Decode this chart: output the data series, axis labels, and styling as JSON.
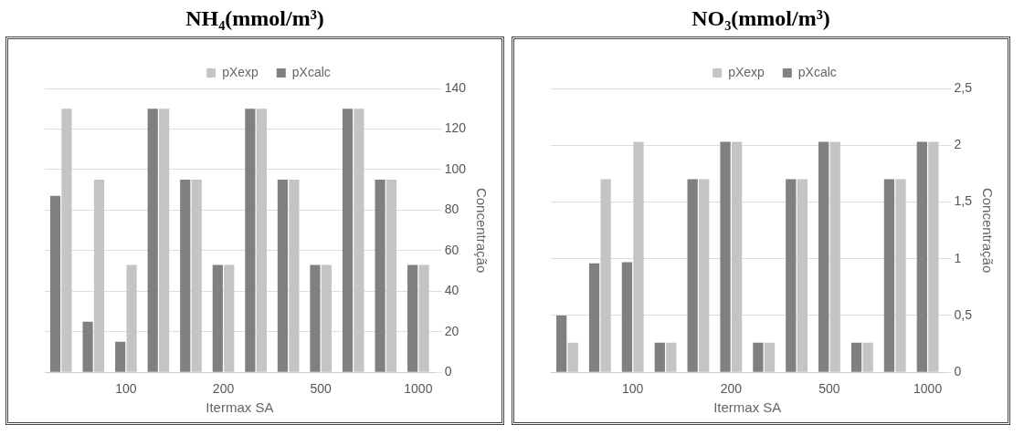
{
  "chart_data": [
    {
      "type": "bar",
      "title": "NH₄(mmol/m³)",
      "xlabel": "Itermax SA",
      "ylabel": "Concentração",
      "categories": [
        null,
        null,
        "100",
        null,
        null,
        "200",
        null,
        null,
        "500",
        null,
        null,
        "1000"
      ],
      "series": [
        {
          "name": "pXcalc",
          "color": "#808080",
          "values": [
            87,
            25,
            15,
            130,
            95,
            53,
            130,
            95,
            53,
            130,
            95,
            53
          ]
        },
        {
          "name": "pXexp",
          "color": "#c4c4c4",
          "values": [
            130,
            95,
            53,
            130,
            95,
            53,
            130,
            95,
            53,
            130,
            95,
            53
          ]
        }
      ],
      "ylim": [
        0,
        140
      ],
      "yticks": [
        0,
        20,
        40,
        60,
        80,
        100,
        120,
        140
      ],
      "grid": "y",
      "legend": "top"
    },
    {
      "type": "bar",
      "title": "NO₃(mmol/m³)",
      "xlabel": "Itermax SA",
      "ylabel": "Concentração",
      "categories": [
        null,
        null,
        "100",
        null,
        null,
        "200",
        null,
        null,
        "500",
        null,
        null,
        "1000"
      ],
      "series": [
        {
          "name": "pXcalc",
          "color": "#808080",
          "values": [
            0.5,
            0.96,
            0.97,
            0.26,
            1.7,
            2.03,
            0.26,
            1.7,
            2.03,
            0.26,
            1.7,
            2.03
          ]
        },
        {
          "name": "pXexp",
          "color": "#c4c4c4",
          "values": [
            0.26,
            1.7,
            2.03,
            0.26,
            1.7,
            2.03,
            0.26,
            1.7,
            2.03,
            0.26,
            1.7,
            2.03
          ]
        }
      ],
      "ylim": [
        0,
        2.5
      ],
      "yticks": [
        0,
        {
          "value": 0.5,
          "label": "0,5"
        },
        1,
        {
          "value": 1.5,
          "label": "1,5"
        },
        2,
        {
          "value": 2.5,
          "label": "2,5"
        }
      ],
      "grid": "y",
      "legend": "top"
    }
  ]
}
